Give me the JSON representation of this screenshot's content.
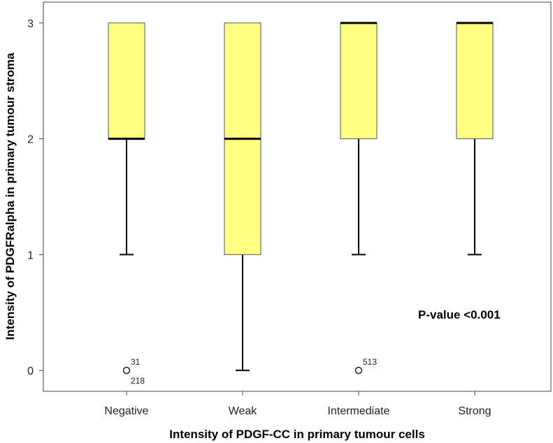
{
  "chart_data": {
    "type": "box",
    "xlabel": "Intensity of PDGF-CC in primary tumour cells",
    "ylabel": "Intensity of PDGFRalpha in primary tumour stroma",
    "ylim": [
      -0.18,
      3.18
    ],
    "yticks": [
      0,
      1,
      2,
      3
    ],
    "grid": false,
    "annotation": "P-value <0.001",
    "box_color": "#ffff80",
    "categories": [
      "Negative",
      "Weak",
      "Intermediate",
      "Strong"
    ],
    "boxes": [
      {
        "category": "Negative",
        "whisker_low": 1,
        "q1": 2,
        "median": 2,
        "q3": 3,
        "whisker_high": 3,
        "outliers": [
          {
            "value": 0,
            "labels": [
              "31",
              "218"
            ]
          }
        ]
      },
      {
        "category": "Weak",
        "whisker_low": 0,
        "q1": 1,
        "median": 2,
        "q3": 3,
        "whisker_high": 3,
        "outliers": []
      },
      {
        "category": "Intermediate",
        "whisker_low": 1,
        "q1": 2,
        "median": 3,
        "q3": 3,
        "whisker_high": 3,
        "outliers": [
          {
            "value": 0,
            "labels": [
              "513"
            ]
          }
        ]
      },
      {
        "category": "Strong",
        "whisker_low": 1,
        "q1": 2,
        "median": 3,
        "q3": 3,
        "whisker_high": 3,
        "outliers": []
      }
    ]
  }
}
